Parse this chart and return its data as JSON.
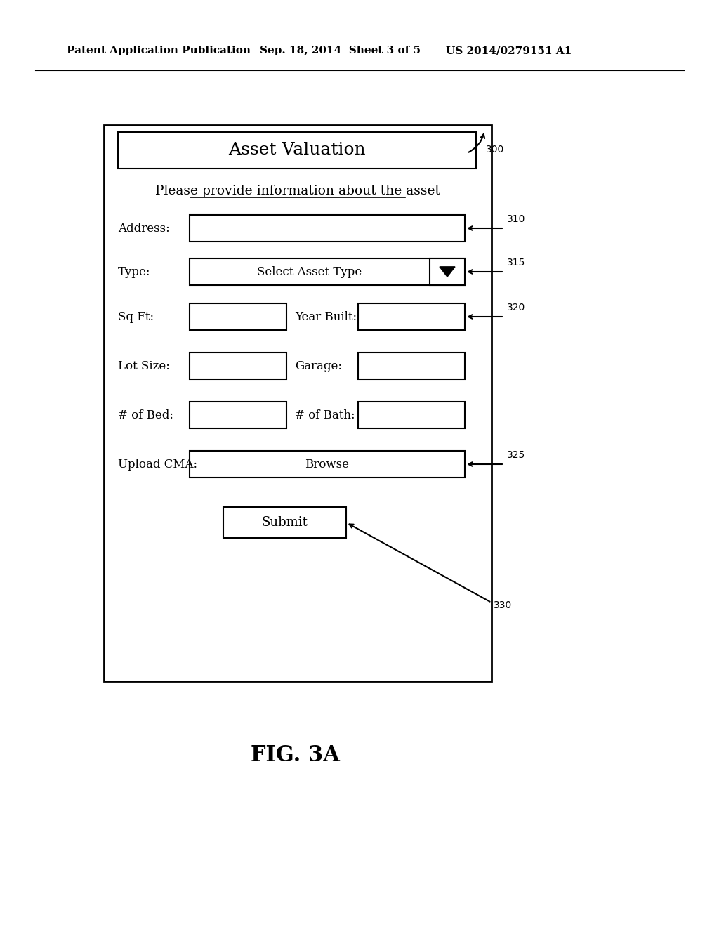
{
  "bg_color": "#ffffff",
  "header_text": "Patent Application Publication",
  "header_date": "Sep. 18, 2014  Sheet 3 of 5",
  "header_patent": "US 2014/0279151 A1",
  "fig_label": "FIG. 3A",
  "form_title": "Asset Valuation",
  "form_subtitle": "Please provide information about the asset",
  "ref_300": "300",
  "ref_310": "310",
  "ref_315": "315",
  "ref_320": "320",
  "ref_325": "325",
  "ref_330": "330",
  "submit_text": "Submit",
  "dropdown_text": "Select Asset Type",
  "browse_text": "Browse"
}
